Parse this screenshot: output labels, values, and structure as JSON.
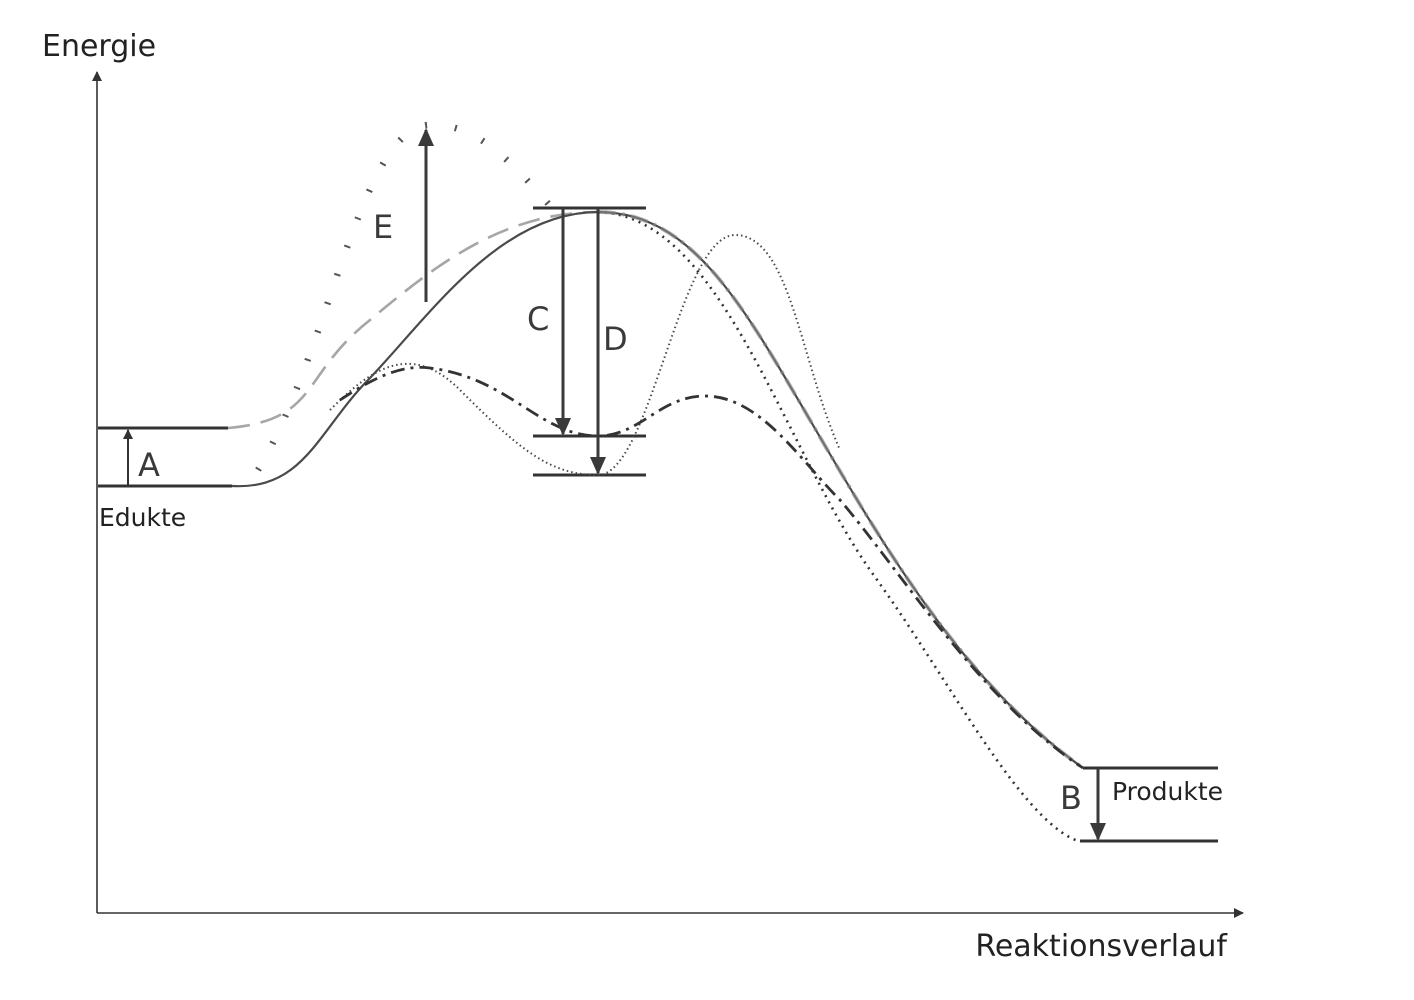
{
  "diagram": {
    "y_axis_label": "Energie",
    "x_axis_label": "Reaktionsverlauf",
    "educts_label": "Edukte",
    "products_label": "Produkte",
    "markers": {
      "a": "A",
      "b": "B",
      "c": "C",
      "d": "D",
      "e": "E"
    }
  },
  "colors": {
    "ink": "#3a3a3a",
    "light_gray": "#a6a6a6",
    "mid_gray": "#8c8c8c"
  }
}
